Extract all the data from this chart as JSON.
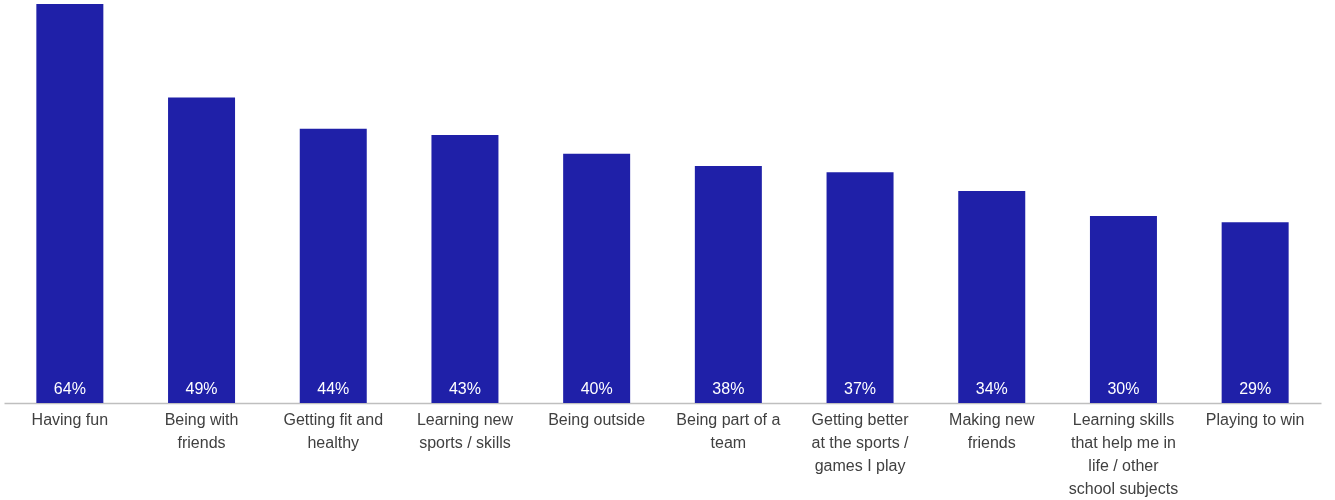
{
  "chart_data": {
    "type": "bar",
    "categories": [
      "Having fun",
      "Being with friends",
      "Getting fit and healthy",
      "Learning new sports / skills",
      "Being outside",
      "Being part of a team",
      "Getting better at the sports / games I play",
      "Making new friends",
      "Learning skills that help me in life / other school subjects",
      "Playing to win"
    ],
    "values": [
      64,
      49,
      44,
      43,
      40,
      38,
      37,
      34,
      30,
      29
    ],
    "value_labels": [
      "64%",
      "49%",
      "44%",
      "43%",
      "40%",
      "38%",
      "37%",
      "34%",
      "30%",
      "29%"
    ],
    "color": "#1f20a8",
    "grid": false
  }
}
